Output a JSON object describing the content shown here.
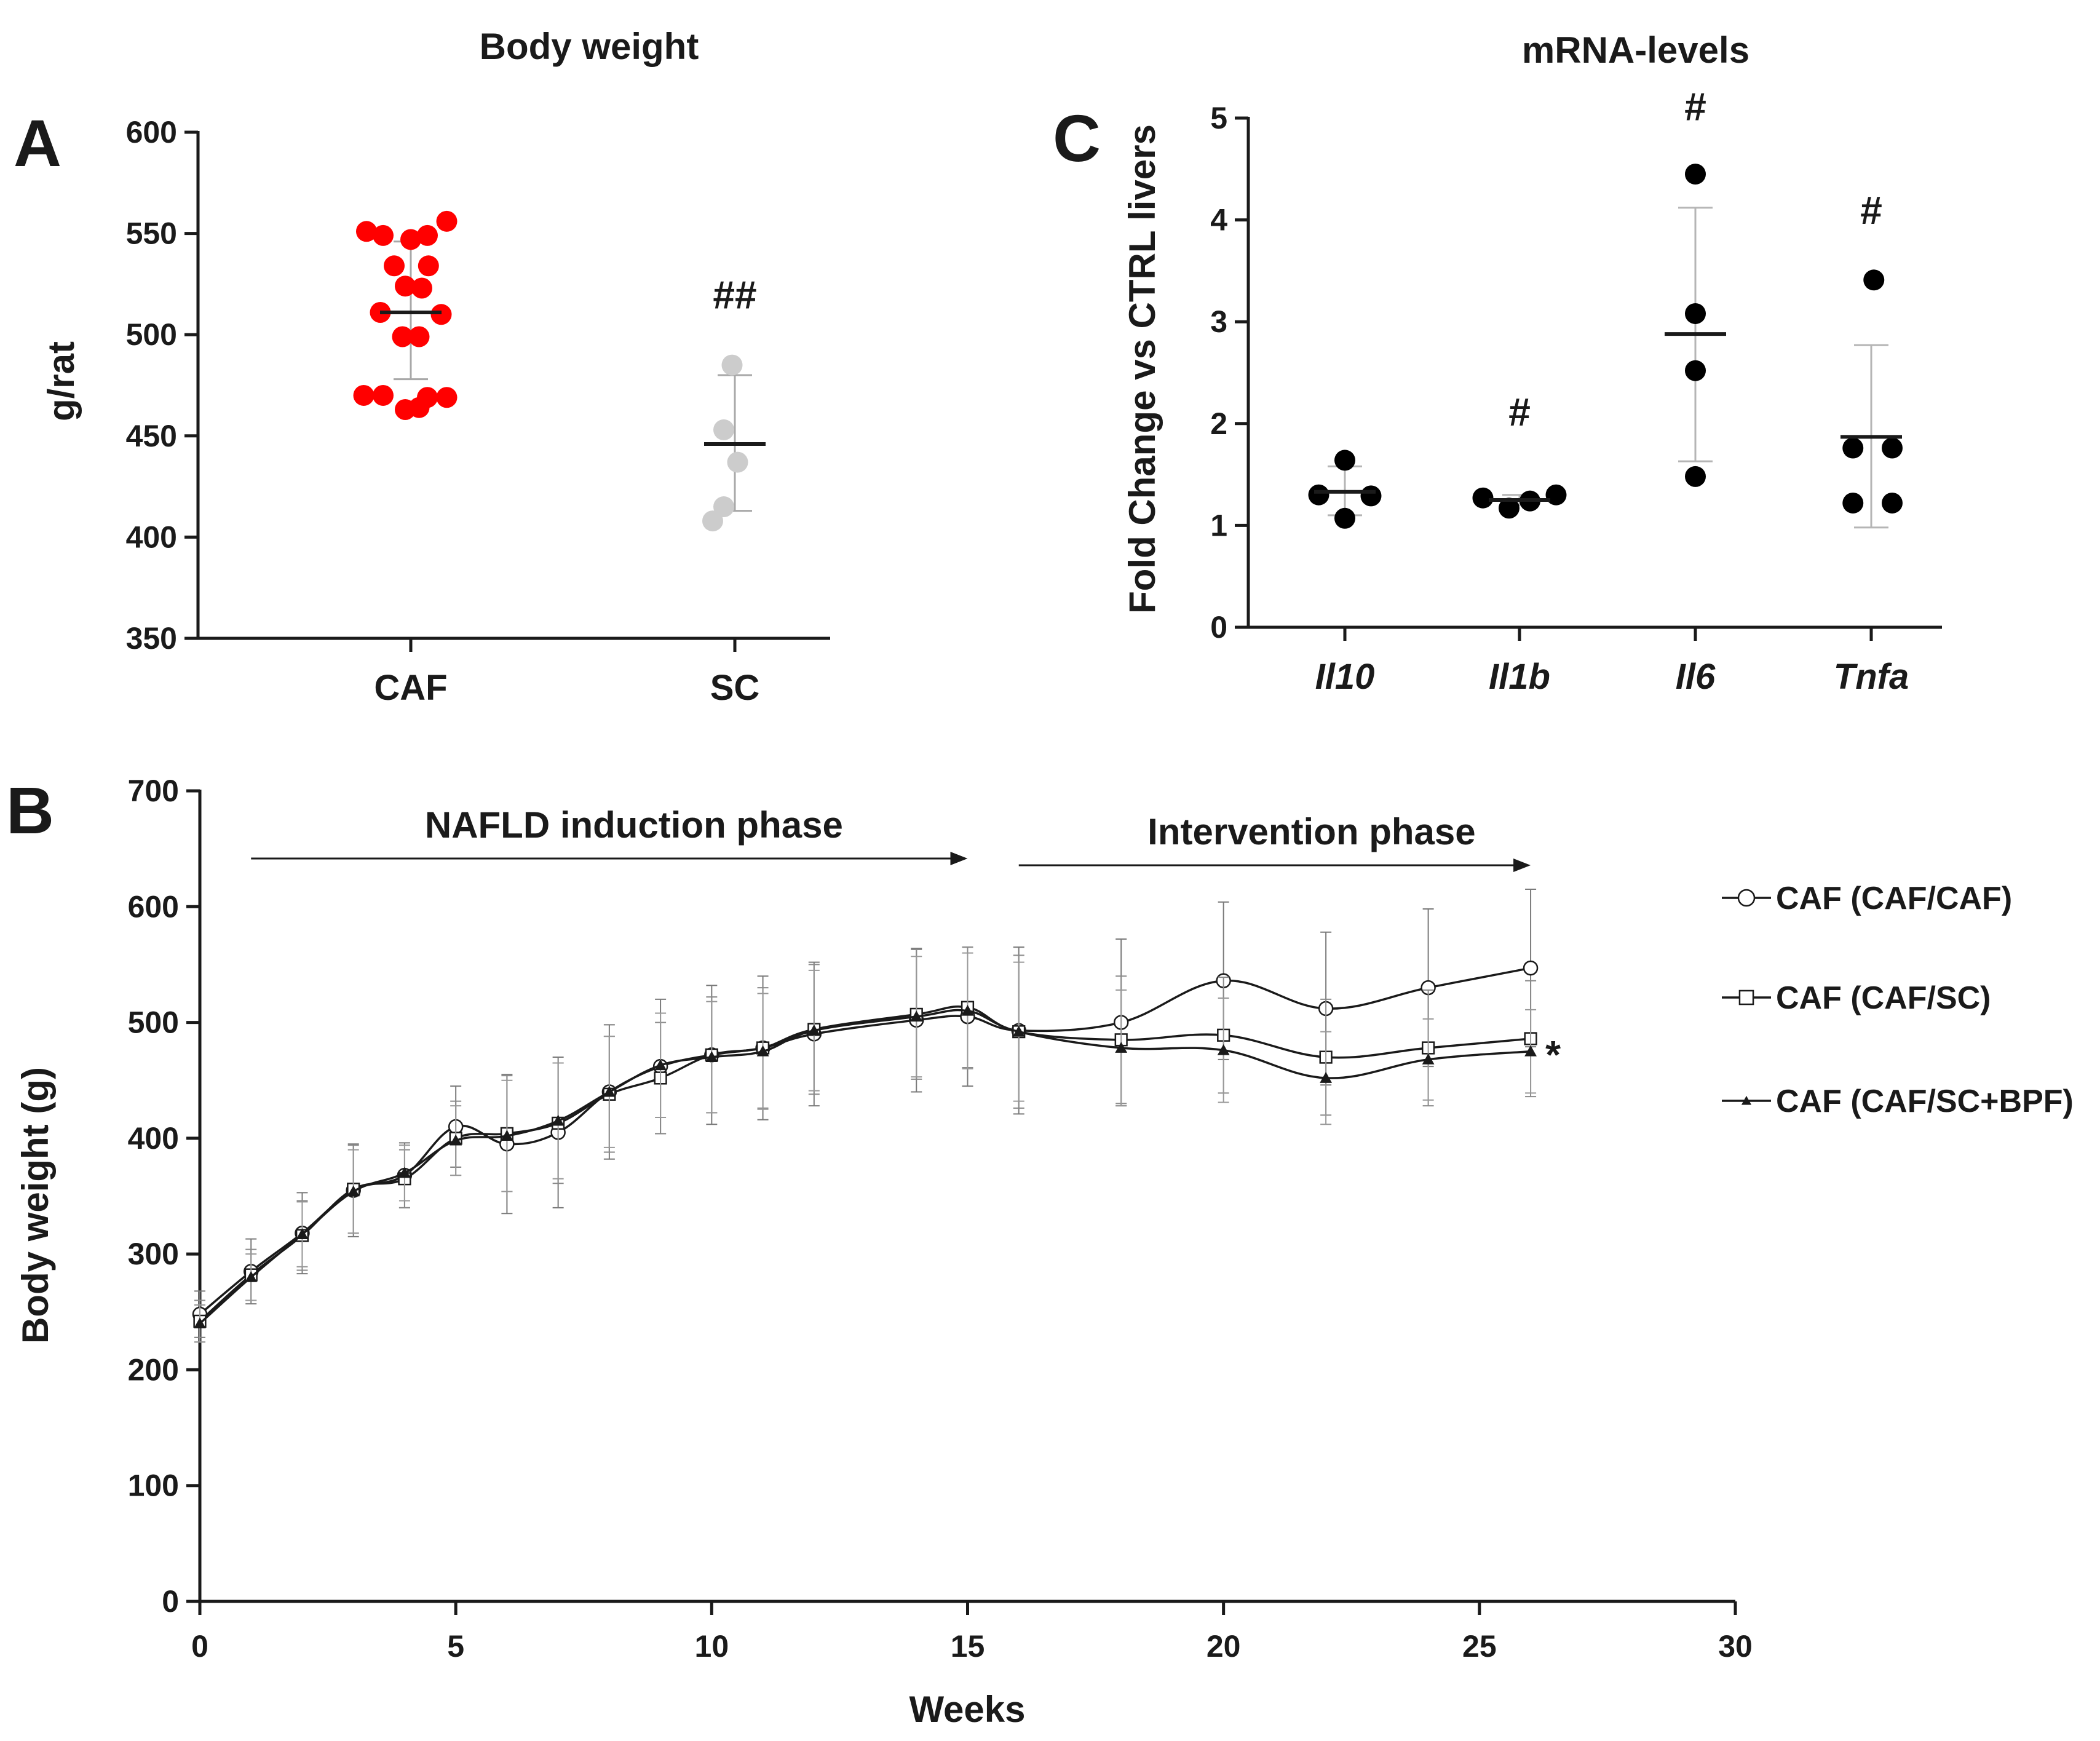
{
  "panels": {
    "A": "A",
    "B": "B",
    "C": "C"
  },
  "chart_data": [
    {
      "id": "A",
      "type": "scatter",
      "title": "Body weight",
      "xlabel": "",
      "ylabel": "g/rat",
      "ylim": [
        350,
        600
      ],
      "yticks": [
        350,
        400,
        450,
        500,
        550,
        600
      ],
      "categories": [
        "CAF",
        "SC"
      ],
      "groups": [
        {
          "name": "CAF",
          "color": "#ff0000",
          "points": [
            {
              "dx": -0.8,
              "y": 551
            },
            {
              "dx": -0.5,
              "y": 549
            },
            {
              "dx": 0.0,
              "y": 547
            },
            {
              "dx": 0.3,
              "y": 549
            },
            {
              "dx": 0.65,
              "y": 556
            },
            {
              "dx": -0.3,
              "y": 534
            },
            {
              "dx": 0.32,
              "y": 534
            },
            {
              "dx": -0.1,
              "y": 524
            },
            {
              "dx": 0.2,
              "y": 523
            },
            {
              "dx": -0.55,
              "y": 511
            },
            {
              "dx": 0.55,
              "y": 510
            },
            {
              "dx": -0.15,
              "y": 499
            },
            {
              "dx": 0.15,
              "y": 499
            },
            {
              "dx": -0.85,
              "y": 470
            },
            {
              "dx": -0.5,
              "y": 470
            },
            {
              "dx": 0.3,
              "y": 469
            },
            {
              "dx": 0.65,
              "y": 469
            },
            {
              "dx": -0.1,
              "y": 463
            },
            {
              "dx": 0.15,
              "y": 464
            }
          ],
          "mean": 511,
          "error": [
            478,
            546
          ]
        },
        {
          "name": "SC",
          "color": "#cccccc",
          "points": [
            {
              "dx": -0.05,
              "y": 485
            },
            {
              "dx": -0.2,
              "y": 453
            },
            {
              "dx": 0.05,
              "y": 437
            },
            {
              "dx": -0.2,
              "y": 415
            },
            {
              "dx": -0.4,
              "y": 408
            }
          ],
          "mean": 446,
          "error": [
            413,
            480
          ]
        }
      ],
      "annotations": [
        {
          "category": "SC",
          "text": "##",
          "y": 513
        }
      ]
    },
    {
      "id": "C",
      "type": "scatter",
      "title": "mRNA-levels",
      "xlabel": "",
      "ylabel": "Fold Change vs CTRL livers",
      "ylim": [
        0,
        5
      ],
      "yticks": [
        0,
        1,
        2,
        3,
        4,
        5
      ],
      "categories": [
        "Il10",
        "Il1b",
        "Il6",
        "Tnfa"
      ],
      "groups": [
        {
          "name": "Il10",
          "color": "#000000",
          "points": [
            {
              "dx": -0.5,
              "y": 1.3
            },
            {
              "dx": 0.0,
              "y": 1.64
            },
            {
              "dx": 0.0,
              "y": 1.07
            },
            {
              "dx": 0.5,
              "y": 1.29
            }
          ],
          "mean": 1.33,
          "error": [
            1.1,
            1.58
          ]
        },
        {
          "name": "Il1b",
          "color": "#000000",
          "points": [
            {
              "dx": -0.7,
              "y": 1.27
            },
            {
              "dx": -0.2,
              "y": 1.17
            },
            {
              "dx": 0.2,
              "y": 1.24
            },
            {
              "dx": 0.7,
              "y": 1.3
            }
          ],
          "mean": 1.25,
          "error": [
            1.2,
            1.3
          ]
        },
        {
          "name": "Il6",
          "color": "#000000",
          "points": [
            {
              "dx": 0.0,
              "y": 4.45
            },
            {
              "dx": 0.0,
              "y": 3.08
            },
            {
              "dx": 0.0,
              "y": 2.52
            },
            {
              "dx": 0.0,
              "y": 1.48
            }
          ],
          "mean": 2.88,
          "error": [
            1.63,
            4.12
          ]
        },
        {
          "name": "Tnfa",
          "color": "#000000",
          "points": [
            {
              "dx": 0.05,
              "y": 3.41
            },
            {
              "dx": -0.35,
              "y": 1.76
            },
            {
              "dx": 0.4,
              "y": 1.76
            },
            {
              "dx": -0.35,
              "y": 1.22
            },
            {
              "dx": 0.4,
              "y": 1.22
            }
          ],
          "mean": 1.87,
          "error": [
            0.98,
            2.77
          ]
        }
      ],
      "annotations": [
        {
          "category": "Il1b",
          "text": "#",
          "y": 1.98
        },
        {
          "category": "Il6",
          "text": "#",
          "y": 4.98
        },
        {
          "category": "Tnfa",
          "text": "#",
          "y": 3.96
        }
      ]
    },
    {
      "id": "B",
      "type": "line",
      "title": "",
      "xlabel": "Weeks",
      "ylabel": "Body weight  (g)",
      "xlim": [
        0,
        30
      ],
      "ylim": [
        0,
        700
      ],
      "xticks": [
        0,
        5,
        10,
        15,
        20,
        25,
        30
      ],
      "yticks": [
        0,
        100,
        200,
        300,
        400,
        500,
        600,
        700
      ],
      "x": [
        0,
        1,
        2,
        3,
        4,
        5,
        6,
        7,
        8,
        9,
        10,
        11,
        12,
        14,
        15,
        16,
        18,
        20,
        22,
        24,
        26
      ],
      "series": [
        {
          "name": "CAF (CAF/CAF)",
          "marker": "circle",
          "values": [
            248,
            285,
            318,
            355,
            368,
            410,
            395,
            405,
            440,
            462,
            472,
            478,
            490,
            502,
            505,
            493,
            500,
            536,
            512,
            530,
            547
          ],
          "error": [
            20,
            28,
            35,
            40,
            28,
            35,
            60,
            65,
            58,
            58,
            60,
            62,
            62,
            62,
            60,
            72,
            72,
            68,
            66,
            68,
            68
          ]
        },
        {
          "name": "CAF (CAF/SC)",
          "marker": "square",
          "values": [
            242,
            282,
            316,
            356,
            365,
            400,
            404,
            413,
            438,
            452,
            472,
            478,
            494,
            507,
            513,
            492,
            485,
            489,
            470,
            478,
            486
          ],
          "error": [
            18,
            22,
            30,
            38,
            25,
            32,
            50,
            52,
            50,
            48,
            50,
            52,
            56,
            56,
            52,
            66,
            55,
            50,
            50,
            50,
            50
          ]
        },
        {
          "name": "CAF (CAF/SC+BPF)",
          "marker": "triangle",
          "values": [
            240,
            280,
            317,
            354,
            370,
            398,
            402,
            415,
            440,
            463,
            470,
            475,
            493,
            505,
            510,
            492,
            478,
            476,
            452,
            468,
            475
          ],
          "error": [
            16,
            20,
            28,
            36,
            24,
            30,
            48,
            50,
            48,
            45,
            48,
            50,
            52,
            52,
            50,
            60,
            50,
            45,
            40,
            35,
            36
          ]
        }
      ],
      "phases": [
        {
          "label": "NAFLD induction phase",
          "from": 1,
          "to": 15
        },
        {
          "label": "Intervention phase",
          "from": 16,
          "to": 26
        }
      ],
      "significance": {
        "text": "*",
        "x": 26,
        "y": 485
      }
    }
  ]
}
